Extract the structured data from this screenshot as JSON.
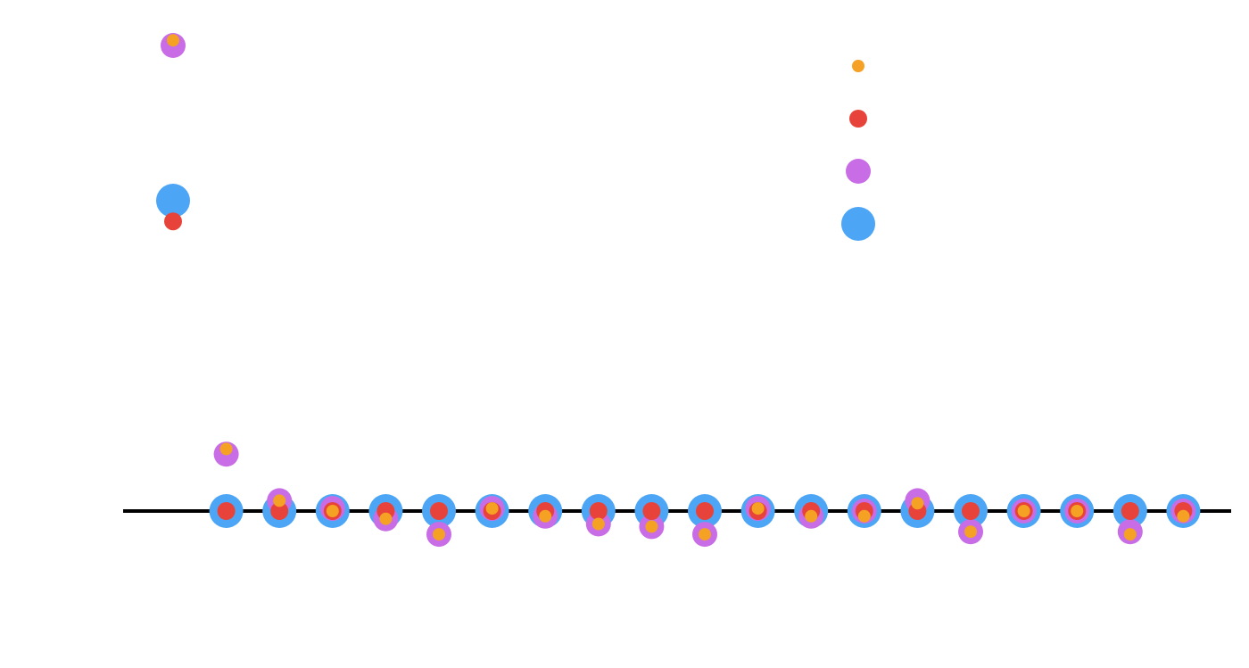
{
  "chart_data": {
    "type": "scatter",
    "title": "",
    "xlabel": "",
    "ylabel": "",
    "grid": false,
    "legend": "top-right",
    "x": [
      0,
      1,
      2,
      3,
      4,
      5,
      6,
      7,
      8,
      9,
      10,
      11,
      12,
      13,
      14,
      15,
      16,
      17,
      18,
      19
    ],
    "series": [
      {
        "color": "#4da6f5",
        "marker_size": "large",
        "values": [
          0.6,
          0,
          0,
          0,
          0,
          0,
          0,
          0,
          0,
          0,
          0,
          0,
          0,
          0,
          0,
          0,
          0,
          0,
          0,
          0
        ]
      },
      {
        "color": "#c86de6",
        "marker_size": "medium",
        "values": [
          0.9,
          0.11,
          0.02,
          0.005,
          -0.015,
          -0.045,
          0.005,
          -0.01,
          -0.025,
          -0.03,
          -0.045,
          0.005,
          -0.01,
          0,
          0.02,
          -0.04,
          0,
          0,
          -0.04,
          0
        ]
      },
      {
        "color": "#e8433a",
        "marker_size": "small",
        "values": [
          0.56,
          0,
          0,
          0,
          0,
          0,
          0,
          0,
          0,
          0,
          0,
          0,
          0,
          0,
          0,
          0,
          0,
          0,
          0,
          0
        ]
      },
      {
        "color": "#f4a124",
        "marker_size": "smallest",
        "values": [
          0.91,
          0.12,
          0.02,
          0,
          -0.015,
          -0.045,
          0.005,
          -0.01,
          -0.025,
          -0.03,
          -0.045,
          0.005,
          -0.01,
          -0.01,
          0.015,
          -0.04,
          0,
          0,
          -0.045,
          -0.01
        ]
      }
    ]
  }
}
